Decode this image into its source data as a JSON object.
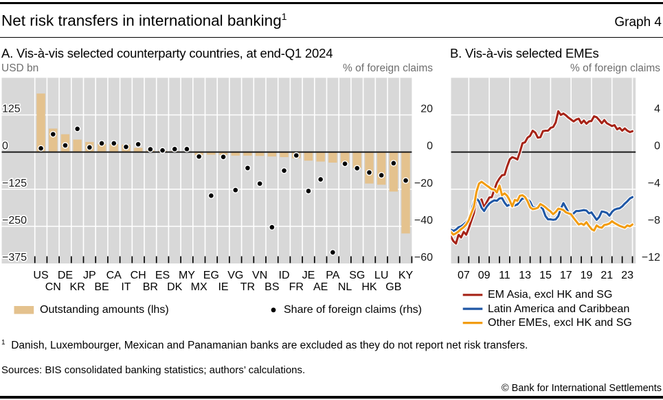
{
  "header": {
    "title": "Net risk transfers in international banking",
    "title_superscript": "1",
    "graph_label": "Graph 4"
  },
  "colors": {
    "plot_background": "#d8d8d8",
    "gridline": "#ffffff",
    "zero_line": "#1a1a1a",
    "bar": "#e4c28e",
    "dot": "#000000",
    "red_line": "#a62418",
    "blue_line": "#1f57a5",
    "orange_line": "#f29c11",
    "unit_text": "#6e6e6e",
    "text": "#000000"
  },
  "panel_a": {
    "title": "A. Vis-à-vis selected counterparty countries, at end-Q1 2024",
    "left_unit": "USD bn",
    "right_unit": "% of foreign claims",
    "legend": [
      {
        "type": "bar",
        "label": "Outstanding amounts (lhs)"
      },
      {
        "type": "dot",
        "label": "Share of foreign claims (rhs)"
      }
    ],
    "left_axis_ticks": [
      125,
      0,
      -125,
      -250,
      -375
    ],
    "right_axis_ticks": [
      20,
      0,
      -20,
      -40,
      -60
    ],
    "left_axis_range": [
      -375,
      250
    ],
    "right_axis_range": [
      -60,
      40
    ]
  },
  "panel_b": {
    "title": "B. Vis-à-vis selected EMEs",
    "right_unit": "% of foreign claims",
    "right_axis_ticks": [
      4,
      0,
      -4,
      -8,
      -12
    ],
    "right_axis_range": [
      -12,
      8
    ],
    "x_tick_years": [
      2007,
      2008,
      2009,
      2010,
      2011,
      2012,
      2013,
      2014,
      2015,
      2016,
      2017,
      2018,
      2019,
      2020,
      2021,
      2022,
      2023,
      2024
    ],
    "x_labels": [
      "07",
      "09",
      "11",
      "13",
      "15",
      "17",
      "19",
      "21",
      "23"
    ],
    "legend": [
      {
        "color_key": "red_line",
        "label": "EM Asia, excl HK and SG"
      },
      {
        "color_key": "blue_line",
        "label": "Latin America and Caribbean"
      },
      {
        "color_key": "orange_line",
        "label": "Other EMEs, excl HK and SG"
      }
    ]
  },
  "chart_data": [
    {
      "type": "bar",
      "panel": "A",
      "title": "A. Vis-à-vis selected counterparty countries, at end-Q1 2024",
      "categories": [
        "US",
        "CN",
        "DE",
        "KR",
        "JP",
        "BE",
        "CA",
        "IT",
        "CH",
        "BR",
        "ES",
        "DK",
        "MY",
        "MX",
        "EG",
        "IE",
        "VG",
        "TR",
        "VN",
        "BS",
        "ID",
        "FR",
        "JE",
        "AE",
        "PA",
        "NL",
        "SG",
        "HK",
        "LU",
        "GB",
        "KY"
      ],
      "series": [
        {
          "name": "Outstanding amounts (lhs)",
          "axis": "left",
          "values": [
            197,
            79,
            60,
            42,
            34,
            27,
            27,
            25,
            14,
            5.5,
            4,
            3,
            2,
            -10,
            -9,
            -10,
            -12,
            -12,
            -13,
            -15,
            -17,
            -21,
            -29,
            -32,
            -35.5,
            -37,
            -54,
            -106,
            -110,
            -133,
            -274
          ]
        },
        {
          "name": "Share of foreign claims (rhs)",
          "axis": "right",
          "values": [
            2.0,
            9.6,
            3.6,
            12.5,
            2.5,
            4.7,
            4.7,
            2.8,
            4.2,
            1.5,
            0.9,
            1.6,
            1.6,
            -2.4,
            -23.5,
            -2.6,
            -20.5,
            -8.6,
            -17,
            -40.5,
            -10,
            -1.8,
            -21,
            -14.7,
            -54,
            -6.3,
            -8.7,
            -11,
            -12.5,
            -6,
            -15.3
          ]
        }
      ],
      "ylabel_left": "USD bn",
      "ylabel_right": "% of foreign claims",
      "ylim_left": [
        -375,
        250
      ],
      "ylim_right": [
        -60,
        40
      ]
    },
    {
      "type": "line",
      "panel": "B",
      "title": "B. Vis-à-vis selected EMEs",
      "x_start": 2006.25,
      "x_step": 0.25,
      "x_end": 2024.0,
      "ylabel_right": "% of foreign claims",
      "ylim": [
        -12,
        8
      ],
      "series": [
        {
          "name": "EM Asia, excl HK and SG",
          "color_key": "red_line",
          "values": [
            -9.1,
            -9.6,
            -9.85,
            -8.9,
            -9.2,
            -8.6,
            -8.9,
            -8.2,
            -7.4,
            -6.6,
            -5.0,
            -5.5,
            -5.1,
            -6.0,
            -5.4,
            -4.9,
            -4.85,
            -4.05,
            -3.3,
            -2.85,
            -2.5,
            -2.45,
            -1.55,
            -0.8,
            -0.55,
            -0.65,
            -0.8,
            0.0,
            0.95,
            1.05,
            1.55,
            1.75,
            2.3,
            2.1,
            1.55,
            1.6,
            2.25,
            2.3,
            2.3,
            2.6,
            2.7,
            3.2,
            4.4,
            4.0,
            4.15,
            3.95,
            3.7,
            3.5,
            3.3,
            3.5,
            3.6,
            3.1,
            3.4,
            3.05,
            3.3,
            3.35,
            3.85,
            3.75,
            3.45,
            3.1,
            3.45,
            3.1,
            2.95,
            2.8,
            2.9,
            2.45,
            2.6,
            2.3,
            2.55,
            2.3,
            2.15,
            2.25
          ]
        },
        {
          "name": "Latin America and Caribbean",
          "color_key": "blue_line",
          "values": [
            -8.35,
            -8.5,
            -8.35,
            -8.1,
            -8.0,
            -7.8,
            -7.55,
            -7.2,
            -6.4,
            -5.3,
            -5.0,
            -5.3,
            -6.0,
            -6.35,
            -5.9,
            -5.55,
            -5.35,
            -5.2,
            -5.25,
            -5.0,
            -4.95,
            -5.45,
            -5.8,
            -5.65,
            -5.85,
            -5.75,
            -5.65,
            -5.3,
            -5.0,
            -5.0,
            -5.1,
            -5.35,
            -5.95,
            -5.95,
            -6.0,
            -5.85,
            -6.15,
            -6.9,
            -7.25,
            -7.25,
            -7.3,
            -7.25,
            -6.9,
            -6.1,
            -5.5,
            -6.0,
            -6.5,
            -6.9,
            -6.6,
            -6.35,
            -6.35,
            -6.3,
            -6.25,
            -6.3,
            -6.6,
            -6.5,
            -6.9,
            -7.3,
            -7.0,
            -6.4,
            -6.45,
            -6.55,
            -6.85,
            -6.45,
            -6.2,
            -6.1,
            -6.05,
            -5.85,
            -5.55,
            -5.3,
            -5.0,
            -4.85
          ]
        },
        {
          "name": "Other EMEs, excl HK and SG",
          "color_key": "orange_line",
          "values": [
            -8.6,
            -8.9,
            -8.75,
            -8.55,
            -8.3,
            -8.1,
            -7.8,
            -7.35,
            -6.6,
            -5.9,
            -4.3,
            -3.4,
            -3.2,
            -3.4,
            -3.6,
            -3.8,
            -4.0,
            -4.05,
            -4.35,
            -3.6,
            -4.65,
            -4.45,
            -4.7,
            -5.2,
            -5.85,
            -5.15,
            -5.25,
            -4.7,
            -4.65,
            -4.85,
            -5.3,
            -5.95,
            -6.15,
            -6.1,
            -6.0,
            -5.6,
            -5.75,
            -5.95,
            -6.2,
            -6.4,
            -6.7,
            -6.45,
            -6.1,
            -6.15,
            -6.25,
            -6.5,
            -6.6,
            -6.7,
            -7.1,
            -7.45,
            -7.8,
            -7.7,
            -7.85,
            -7.55,
            -7.95,
            -8.3,
            -8.45,
            -7.9,
            -8.1,
            -8.15,
            -7.85,
            -7.8,
            -7.7,
            -7.45,
            -7.65,
            -7.8,
            -7.95,
            -8.05,
            -8.15,
            -7.9,
            -8.0,
            -7.8
          ]
        }
      ]
    }
  ],
  "footnote": {
    "marker": "1",
    "text": "Danish, Luxembourger, Mexican and Panamanian banks are excluded as they do not report net risk transfers."
  },
  "sources": "Sources: BIS consolidated banking statistics; authors’ calculations.",
  "copyright": "© Bank for International Settlements"
}
